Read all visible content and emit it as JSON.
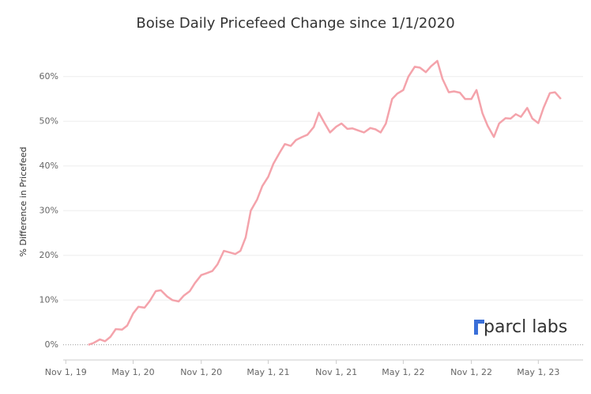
{
  "chart_data": {
    "type": "line",
    "title": "Boise Daily Pricefeed Change since 1/1/2020",
    "y_label": "% Difference in Pricefeed",
    "logo": "parcl labs",
    "x": [
      "2020-01-01",
      "2020-01-15",
      "2020-02-01",
      "2020-02-15",
      "2020-03-01",
      "2020-03-15",
      "2020-04-01",
      "2020-04-15",
      "2020-05-01",
      "2020-05-15",
      "2020-06-01",
      "2020-06-15",
      "2020-07-01",
      "2020-07-15",
      "2020-08-01",
      "2020-08-15",
      "2020-09-01",
      "2020-09-15",
      "2020-10-01",
      "2020-10-15",
      "2020-11-01",
      "2020-11-15",
      "2020-12-01",
      "2020-12-15",
      "2021-01-01",
      "2021-01-15",
      "2021-02-01",
      "2021-02-15",
      "2021-03-01",
      "2021-03-15",
      "2021-04-01",
      "2021-04-15",
      "2021-05-01",
      "2021-05-15",
      "2021-06-01",
      "2021-06-15",
      "2021-07-01",
      "2021-07-15",
      "2021-08-01",
      "2021-08-15",
      "2021-09-01",
      "2021-09-15",
      "2021-10-01",
      "2021-10-15",
      "2021-11-01",
      "2021-11-15",
      "2021-12-01",
      "2021-12-15",
      "2022-01-01",
      "2022-01-15",
      "2022-02-01",
      "2022-02-15",
      "2022-03-01",
      "2022-03-15",
      "2022-04-01",
      "2022-04-15",
      "2022-05-01",
      "2022-05-15",
      "2022-06-01",
      "2022-06-15",
      "2022-07-01",
      "2022-07-15",
      "2022-08-01",
      "2022-08-15",
      "2022-09-01",
      "2022-09-15",
      "2022-10-01",
      "2022-10-15",
      "2022-11-01",
      "2022-11-15",
      "2022-12-01",
      "2022-12-15",
      "2023-01-01",
      "2023-01-15",
      "2023-02-01",
      "2023-02-15",
      "2023-03-01",
      "2023-03-15",
      "2023-04-01",
      "2023-04-15",
      "2023-05-01",
      "2023-05-15",
      "2023-06-01",
      "2023-06-15",
      "2023-07-01"
    ],
    "series": [
      {
        "name": "Boise",
        "color": "#f4a3ab",
        "values": [
          0,
          0.4,
          1.2,
          0.8,
          1.8,
          3.5,
          3.4,
          4.3,
          7,
          8.5,
          8.3,
          9.8,
          12,
          12.2,
          10.8,
          10,
          9.7,
          11,
          12,
          13.8,
          15.6,
          16,
          16.5,
          18,
          21,
          20.7,
          20.3,
          21,
          24,
          30,
          32.5,
          35.5,
          37.6,
          40.5,
          43,
          44.9,
          44.5,
          45.8,
          46.5,
          47,
          48.7,
          51.9,
          49.5,
          47.5,
          48.8,
          49.5,
          48.3,
          48.4,
          47.9,
          47.5,
          48.5,
          48.2,
          47.5,
          49.5,
          55,
          56.2,
          57,
          60,
          62.2,
          62,
          61,
          62.3,
          63.5,
          59.5,
          56.5,
          56.7,
          56.4,
          55,
          55,
          57,
          51.8,
          49,
          46.5,
          49.5,
          50.7,
          50.6,
          51.6,
          51,
          53,
          50.6,
          49.6,
          53,
          56.3,
          56.5,
          55
        ]
      }
    ],
    "xlim": [
      "2019-10-25",
      "2023-08-30"
    ],
    "xticks": [
      {
        "value": "2019-11-01",
        "label": "Nov 1, 19"
      },
      {
        "value": "2020-05-01",
        "label": "May 1, 20"
      },
      {
        "value": "2020-11-01",
        "label": "Nov 1, 20"
      },
      {
        "value": "2021-05-01",
        "label": "May 1, 21"
      },
      {
        "value": "2021-11-01",
        "label": "Nov 1, 21"
      },
      {
        "value": "2022-05-01",
        "label": "May 1, 22"
      },
      {
        "value": "2022-11-01",
        "label": "Nov 1, 22"
      },
      {
        "value": "2023-05-01",
        "label": "May 1, 23"
      }
    ],
    "ylim": [
      -3.4,
      67.4
    ],
    "yticks": [
      {
        "value": 0,
        "label": "0%"
      },
      {
        "value": 10,
        "label": "10%"
      },
      {
        "value": 20,
        "label": "20%"
      },
      {
        "value": 30,
        "label": "30%"
      },
      {
        "value": 40,
        "label": "40%"
      },
      {
        "value": 50,
        "label": "50%"
      },
      {
        "value": 60,
        "label": "60%"
      }
    ],
    "grid": true
  }
}
